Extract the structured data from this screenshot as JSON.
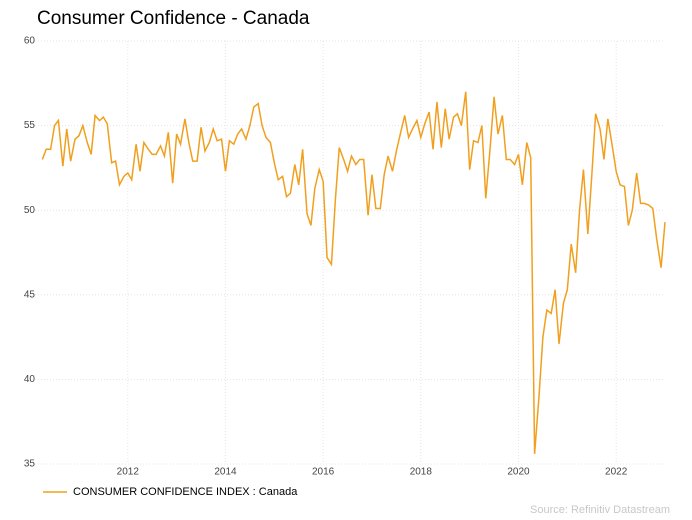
{
  "chart_data": {
    "type": "line",
    "title": "Consumer Confidence - Canada",
    "source": "Source: Refinitiv Datastream",
    "x": [
      2010.25,
      2010.33,
      2010.42,
      2010.5,
      2010.58,
      2010.67,
      2010.75,
      2010.83,
      2010.92,
      2011.0,
      2011.08,
      2011.17,
      2011.25,
      2011.33,
      2011.42,
      2011.5,
      2011.58,
      2011.67,
      2011.75,
      2011.83,
      2011.92,
      2012.0,
      2012.08,
      2012.17,
      2012.25,
      2012.33,
      2012.42,
      2012.5,
      2012.58,
      2012.67,
      2012.75,
      2012.83,
      2012.92,
      2013.0,
      2013.08,
      2013.17,
      2013.25,
      2013.33,
      2013.42,
      2013.5,
      2013.58,
      2013.67,
      2013.75,
      2013.83,
      2013.92,
      2014.0,
      2014.08,
      2014.17,
      2014.25,
      2014.33,
      2014.42,
      2014.5,
      2014.58,
      2014.67,
      2014.75,
      2014.83,
      2014.92,
      2015.0,
      2015.08,
      2015.17,
      2015.25,
      2015.33,
      2015.42,
      2015.5,
      2015.58,
      2015.67,
      2015.75,
      2015.83,
      2015.92,
      2016.0,
      2016.08,
      2016.17,
      2016.25,
      2016.33,
      2016.42,
      2016.5,
      2016.58,
      2016.67,
      2016.75,
      2016.83,
      2016.92,
      2017.0,
      2017.08,
      2017.17,
      2017.25,
      2017.33,
      2017.42,
      2017.5,
      2017.58,
      2017.67,
      2017.75,
      2017.83,
      2017.92,
      2018.0,
      2018.08,
      2018.17,
      2018.25,
      2018.33,
      2018.42,
      2018.5,
      2018.58,
      2018.67,
      2018.75,
      2018.83,
      2018.92,
      2019.0,
      2019.08,
      2019.17,
      2019.25,
      2019.33,
      2019.42,
      2019.5,
      2019.58,
      2019.67,
      2019.75,
      2019.83,
      2019.92,
      2020.0,
      2020.08,
      2020.17,
      2020.25,
      2020.33,
      2020.42,
      2020.5,
      2020.58,
      2020.67,
      2020.75,
      2020.83,
      2020.92,
      2021.0,
      2021.08,
      2021.17,
      2021.25,
      2021.33,
      2021.42,
      2021.5,
      2021.58,
      2021.67,
      2021.75,
      2021.83,
      2021.92,
      2022.0,
      2022.08,
      2022.17,
      2022.25,
      2022.33,
      2022.42,
      2022.5,
      2022.58,
      2022.67,
      2022.75,
      2022.83,
      2022.92,
      2023.0
    ],
    "series": [
      {
        "name": "CONSUMER CONFIDENCE INDEX : Canada",
        "color": "#f0a01e",
        "values": [
          53.0,
          53.6,
          53.6,
          55.0,
          55.3,
          52.6,
          54.8,
          52.9,
          54.2,
          54.4,
          55.0,
          54.0,
          53.3,
          55.6,
          55.3,
          55.5,
          55.1,
          52.8,
          52.9,
          51.5,
          52.0,
          52.2,
          51.8,
          53.9,
          52.3,
          54.0,
          53.6,
          53.3,
          53.3,
          53.8,
          53.2,
          54.6,
          51.6,
          54.5,
          53.9,
          55.4,
          54.0,
          52.9,
          52.9,
          54.9,
          53.5,
          54.0,
          54.8,
          54.1,
          54.2,
          52.3,
          54.1,
          53.9,
          54.5,
          54.8,
          54.2,
          55.0,
          56.1,
          56.3,
          55.0,
          54.3,
          54.0,
          52.8,
          51.8,
          52.0,
          50.8,
          51.0,
          52.7,
          51.5,
          53.6,
          49.8,
          49.1,
          51.3,
          52.4,
          51.7,
          47.2,
          46.8,
          50.6,
          53.7,
          53.0,
          52.3,
          53.2,
          52.7,
          53.0,
          53.0,
          49.7,
          52.1,
          50.1,
          50.1,
          52.1,
          53.2,
          52.3,
          53.5,
          54.5,
          55.6,
          54.3,
          54.8,
          55.3,
          54.3,
          55.1,
          55.8,
          53.6,
          56.4,
          53.7,
          56.0,
          54.2,
          55.5,
          55.7,
          55.0,
          57.0,
          52.4,
          54.1,
          54.0,
          55.0,
          50.7,
          53.7,
          56.7,
          54.5,
          55.6,
          53.0,
          53.0,
          52.7,
          53.3,
          51.5,
          54.0,
          53.1,
          35.6,
          39.0,
          42.5,
          44.1,
          43.9,
          45.3,
          42.1,
          44.5,
          45.3,
          48.0,
          46.3,
          50.0,
          52.4,
          48.6,
          52.0,
          55.7,
          54.8,
          53.0,
          55.4,
          53.8,
          52.3,
          51.5,
          51.4,
          49.1,
          50.0,
          52.2,
          50.4,
          50.4,
          50.3,
          50.1,
          48.3,
          46.6,
          49.3
        ]
      }
    ],
    "xlim": [
      2010.1,
      2023.0
    ],
    "xticks": [
      2012,
      2014,
      2016,
      2018,
      2020,
      2022
    ],
    "ylim": [
      35,
      60
    ],
    "yticks": [
      35,
      40,
      45,
      50,
      55,
      60
    ],
    "grid": true
  }
}
